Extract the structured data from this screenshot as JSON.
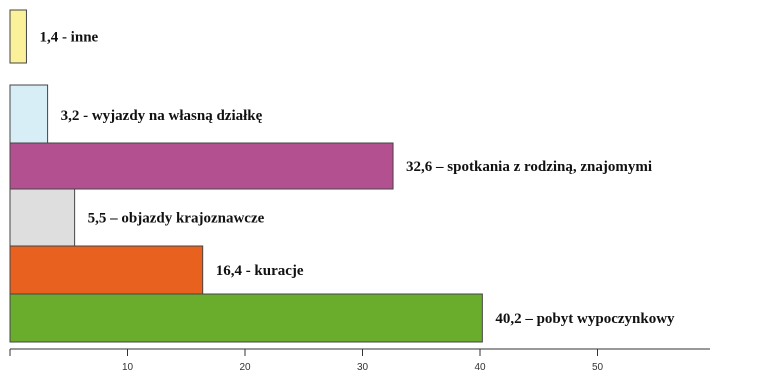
{
  "chart_data": {
    "type": "bar",
    "orientation": "horizontal",
    "title": "",
    "xlabel": "",
    "ylabel": "",
    "xlim": [
      0,
      60
    ],
    "x_ticks": [
      10,
      20,
      30,
      40,
      50
    ],
    "grid": false,
    "legend": "none",
    "bars": [
      {
        "value": 1.4,
        "label": "1,4 - inne",
        "color": "#fbf19b"
      },
      {
        "value": 3.2,
        "label": "3,2 - wyjazdy na własną działkę",
        "color": "#d7eef6"
      },
      {
        "value": 32.6,
        "label": "32,6 – spotkania z rodziną, znajomymi",
        "color": "#b3508f"
      },
      {
        "value": 5.5,
        "label": "5,5 – objazdy krajoznawcze",
        "color": "#dedede"
      },
      {
        "value": 16.4,
        "label": "16,4 - kuracje",
        "color": "#e8611e"
      },
      {
        "value": 40.2,
        "label": "40,2 – pobyt wypoczynkowy",
        "color": "#6aac2c"
      }
    ]
  }
}
